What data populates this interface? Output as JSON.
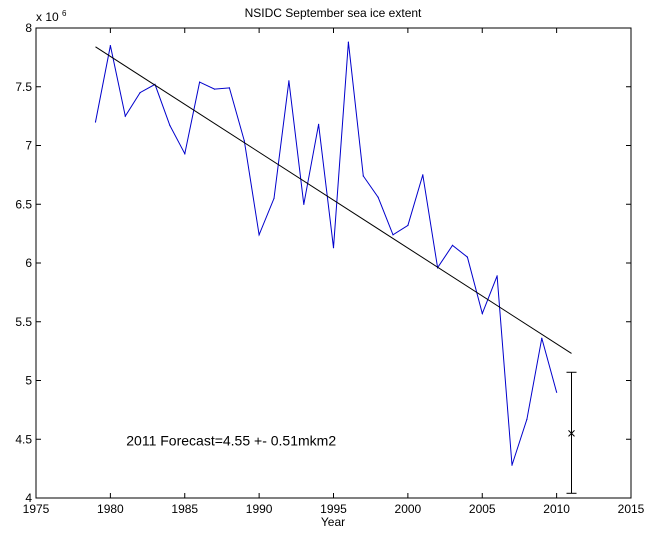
{
  "chart_data": {
    "type": "line",
    "title": "NSIDC September sea ice extent",
    "xlabel": "Year",
    "ylabel": "",
    "y_multiplier_label": "x 10",
    "y_multiplier_exponent": "6",
    "xlim": [
      1975,
      2015
    ],
    "ylim": [
      4,
      8
    ],
    "x_ticks": [
      1975,
      1980,
      1985,
      1990,
      1995,
      2000,
      2005,
      2010,
      2015
    ],
    "y_ticks": [
      4,
      4.5,
      5,
      5.5,
      6,
      6.5,
      7,
      7.5,
      8
    ],
    "x_tick_labels": [
      "1975",
      "1980",
      "1985",
      "1990",
      "1995",
      "2000",
      "2005",
      "2010",
      "2015"
    ],
    "y_tick_labels": [
      "4",
      "4.5",
      "5",
      "5.5",
      "6",
      "6.5",
      "7",
      "7.5",
      "8"
    ],
    "grid": false,
    "series": [
      {
        "color": "#0000cc",
        "x": [
          1979,
          1980,
          1981,
          1982,
          1983,
          1984,
          1985,
          1986,
          1987,
          1988,
          1989,
          1990,
          1991,
          1992,
          1993,
          1994,
          1995,
          1996,
          1997,
          1998,
          1999,
          2000,
          2001,
          2002,
          2003,
          2004,
          2005,
          2006,
          2007,
          2008,
          2009,
          2010
        ],
        "y": [
          7.2,
          7.85,
          7.25,
          7.45,
          7.52,
          7.17,
          6.93,
          7.54,
          7.48,
          7.49,
          7.04,
          6.24,
          6.55,
          7.55,
          6.5,
          7.18,
          6.13,
          7.88,
          6.74,
          6.56,
          6.24,
          6.32,
          6.75,
          5.96,
          6.15,
          6.05,
          5.57,
          5.89,
          4.28,
          4.67,
          5.36,
          4.9
        ]
      }
    ],
    "trend_line": {
      "color": "#000000",
      "x": [
        1979,
        2011
      ],
      "y": [
        7.84,
        5.23
      ]
    },
    "forecast": {
      "x": 2011,
      "value": 4.55,
      "lower": 4.04,
      "upper": 5.07,
      "marker": "x"
    },
    "annotation": {
      "text": "2011 Forecast=4.55 +- 0.51mkm2",
      "x": 1981,
      "y": 4.5
    }
  }
}
